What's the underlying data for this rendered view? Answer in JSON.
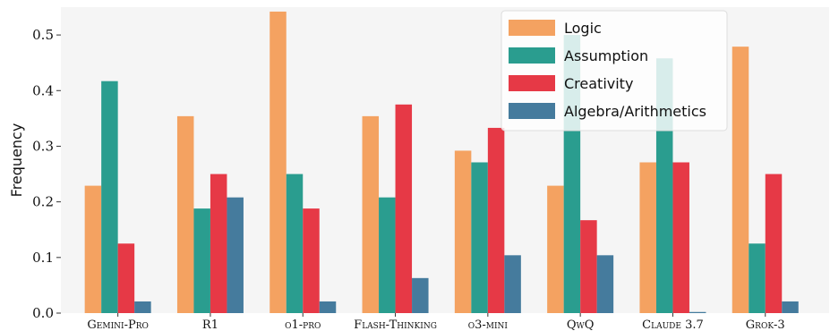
{
  "chart_data": {
    "type": "bar",
    "title": "",
    "xlabel": "",
    "ylabel": "Frequency",
    "ylim": [
      0,
      0.55
    ],
    "yticks": [
      0.0,
      0.1,
      0.2,
      0.3,
      0.4,
      0.5
    ],
    "ytick_labels": [
      "0.0",
      "0.1",
      "0.2",
      "0.3",
      "0.4",
      "0.5"
    ],
    "grid": false,
    "legend_position": "top-right",
    "categories": [
      "Gemini-Pro",
      "R1",
      "o1-pro",
      "Flash-Thinking",
      "o3-mini",
      "QwQ",
      "Claude 3.7",
      "Grok-3"
    ],
    "series": [
      {
        "name": "Logic",
        "color": "#F4A261",
        "values": [
          0.229,
          0.354,
          0.542,
          0.354,
          0.292,
          0.229,
          0.271,
          0.479
        ]
      },
      {
        "name": "Assumption",
        "color": "#2A9D8F",
        "values": [
          0.417,
          0.188,
          0.25,
          0.208,
          0.271,
          0.5,
          0.458,
          0.125
        ]
      },
      {
        "name": "Creativity",
        "color": "#E63946",
        "values": [
          0.125,
          0.25,
          0.188,
          0.375,
          0.333,
          0.167,
          0.271,
          0.25
        ]
      },
      {
        "name": "Algebra/Arithmetics",
        "color": "#457B9D",
        "values": [
          0.021,
          0.208,
          0.021,
          0.063,
          0.104,
          0.104,
          0.002,
          0.021
        ]
      }
    ]
  }
}
